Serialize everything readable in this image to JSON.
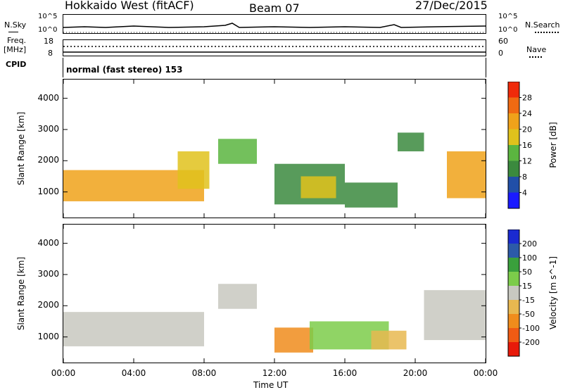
{
  "header": {
    "station": "Hokkaido West (fitACF)",
    "beam": "Beam 07",
    "date": "27/Dec/2015"
  },
  "sidebar_left": {
    "nsky": "N.Sky",
    "freq_line1": "Freq.",
    "freq_line2": "[MHz]",
    "cpid": "CPID",
    "nsky_ticks": [
      "10^5",
      "10^0"
    ],
    "freq_ticks": [
      "18",
      "8"
    ]
  },
  "sidebar_right": {
    "nsearch": "N.Search",
    "nave": "Nave",
    "nsearch_ticks": [
      "10^5",
      "10^0"
    ],
    "nave_ticks": [
      "60",
      "0"
    ]
  },
  "cpid_label": "normal (fast stereo) 153",
  "x_axis": {
    "label": "Time UT",
    "ticks": [
      "00:00",
      "04:00",
      "08:00",
      "12:00",
      "16:00",
      "20:00",
      "00:00"
    ]
  },
  "colors": {
    "power_scale": [
      "#1a1aff",
      "#214fa8",
      "#3b8a3e",
      "#5bb540",
      "#e0c21c",
      "#f0a21a",
      "#f06a12",
      "#f02a0a"
    ],
    "velocity_scale": [
      "#e81a0a",
      "#f05b14",
      "#f08c1c",
      "#e8b850",
      "#c8c8c0",
      "#7ccc4a",
      "#3aa03c",
      "#2c5aa8",
      "#1a2ad0"
    ]
  },
  "chart_data": [
    {
      "type": "heatmap",
      "title": "",
      "xlabel": "",
      "ylabel": "Slant Range [km]",
      "x_unit": "hours UT",
      "xlim": [
        0,
        24
      ],
      "ylim": [
        180,
        4600
      ],
      "yticks": [
        "1000",
        "2000",
        "3000",
        "4000"
      ],
      "colorbar": {
        "label": "Power [dB]",
        "ticks": [
          "4",
          "8",
          "12",
          "16",
          "20",
          "24",
          "28"
        ],
        "range": [
          0,
          30
        ]
      },
      "regions": [
        {
          "x": [
            0.0,
            8.0
          ],
          "y": [
            700,
            1700
          ],
          "value": 22
        },
        {
          "x": [
            6.5,
            8.3
          ],
          "y": [
            1100,
            2300
          ],
          "value": 18
        },
        {
          "x": [
            8.8,
            11.0
          ],
          "y": [
            1900,
            2700
          ],
          "value": 12
        },
        {
          "x": [
            12.0,
            16.0
          ],
          "y": [
            600,
            1900
          ],
          "value": 10
        },
        {
          "x": [
            13.5,
            15.5
          ],
          "y": [
            800,
            1500
          ],
          "value": 18
        },
        {
          "x": [
            16.0,
            19.0
          ],
          "y": [
            500,
            1300
          ],
          "value": 10
        },
        {
          "x": [
            19.0,
            20.5
          ],
          "y": [
            2300,
            2900
          ],
          "value": 8
        },
        {
          "x": [
            21.8,
            24.0
          ],
          "y": [
            800,
            2300
          ],
          "value": 22
        }
      ]
    },
    {
      "type": "heatmap",
      "title": "",
      "xlabel": "Time UT",
      "ylabel": "Slant Range [km]",
      "x_unit": "hours UT",
      "xlim": [
        0,
        24
      ],
      "ylim": [
        180,
        4600
      ],
      "yticks": [
        "1000",
        "2000",
        "3000",
        "4000"
      ],
      "colorbar": {
        "label": "Velocity [m s^-1]",
        "ticks": [
          "200",
          "100",
          "50",
          "15",
          "-15",
          "-50",
          "-100",
          "-200"
        ],
        "range": [
          -250,
          250
        ]
      },
      "regions": [
        {
          "x": [
            0.0,
            8.0
          ],
          "y": [
            700,
            1800
          ],
          "value": 0
        },
        {
          "x": [
            8.8,
            11.0
          ],
          "y": [
            1900,
            2700
          ],
          "value": 0
        },
        {
          "x": [
            12.0,
            14.2
          ],
          "y": [
            500,
            1300
          ],
          "value": -120
        },
        {
          "x": [
            14.0,
            18.5
          ],
          "y": [
            600,
            1500
          ],
          "value": 40
        },
        {
          "x": [
            17.5,
            19.5
          ],
          "y": [
            600,
            1200
          ],
          "value": -40
        },
        {
          "x": [
            20.5,
            24.0
          ],
          "y": [
            900,
            2500
          ],
          "value": 20
        }
      ]
    }
  ]
}
